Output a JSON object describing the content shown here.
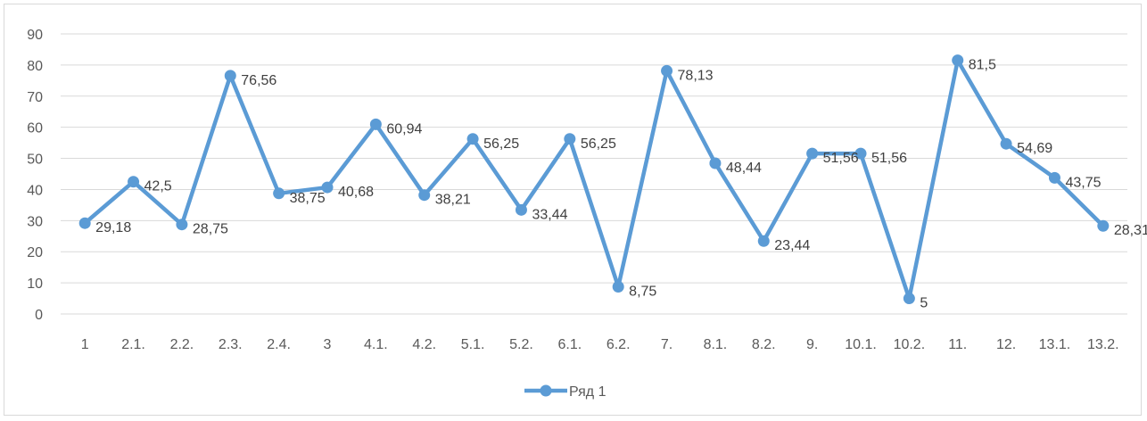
{
  "chart_data": {
    "type": "line",
    "categories": [
      "1",
      "2.1.",
      "2.2.",
      "2.3.",
      "2.4.",
      "3",
      "4.1.",
      "4.2.",
      "5.1.",
      "5.2.",
      "6.1.",
      "6.2.",
      "7.",
      "8.1.",
      "8.2.",
      "9.",
      "10.1.",
      "10.2.",
      "11.",
      "12.",
      "13.1.",
      "13.2."
    ],
    "series": [
      {
        "name": "Ряд 1",
        "values": [
          29.18,
          42.5,
          28.75,
          76.56,
          38.75,
          40.68,
          60.94,
          38.21,
          56.25,
          33.44,
          56.25,
          8.75,
          78.13,
          48.44,
          23.44,
          51.56,
          51.56,
          5,
          81.5,
          54.69,
          43.75,
          28.31
        ],
        "labels": [
          "29,18",
          "42,5",
          "28,75",
          "76,56",
          "38,75",
          "40,68",
          "60,94",
          "38,21",
          "56,25",
          "33,44",
          "56,25",
          "8,75",
          "78,13",
          "48,44",
          "23,44",
          "51,56",
          "51,56",
          "5",
          "81,5",
          "54,69",
          "43,75",
          "28,31"
        ]
      }
    ],
    "y_ticks": [
      "0",
      "10",
      "20",
      "30",
      "40",
      "50",
      "60",
      "70",
      "80",
      "90"
    ],
    "ylim": [
      0,
      90
    ],
    "grid": true,
    "legend": "bottom",
    "colors": {
      "line": "#5b9bd5",
      "grid": "#d9d9d9",
      "axis": "#d9d9d9"
    }
  }
}
